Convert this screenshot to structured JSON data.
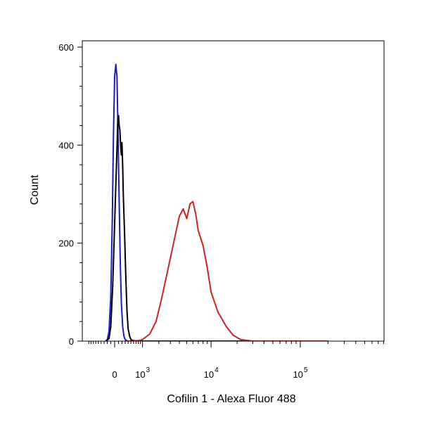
{
  "chart_data": {
    "type": "line",
    "title": "",
    "xlabel": "Cofilin 1 - Alexa Fluor 488",
    "ylabel": "Count",
    "x_scale": "biexponential",
    "ylim": [
      0,
      600
    ],
    "yticks": [
      "0",
      "200",
      "400",
      "600"
    ],
    "xticks": [
      {
        "base": "0",
        "exp": ""
      },
      {
        "base": "10",
        "exp": "3"
      },
      {
        "base": "10",
        "exp": "4"
      },
      {
        "base": "10",
        "exp": "5"
      }
    ],
    "grid": false,
    "legend": "none",
    "series": [
      {
        "color": "#1a1acc",
        "x": [
          -250,
          -200,
          -150,
          -100,
          -60,
          -30,
          0,
          30,
          60,
          90,
          120,
          150,
          180,
          220,
          260,
          300,
          350,
          400,
          500,
          800,
          3000,
          100000,
          200000
        ],
        "values": [
          0,
          3,
          20,
          90,
          250,
          420,
          540,
          565,
          540,
          420,
          280,
          160,
          80,
          30,
          10,
          3,
          1,
          0,
          0,
          0,
          0,
          0,
          0
        ]
      },
      {
        "color": "#000000",
        "x": [
          -250,
          -150,
          -100,
          -50,
          0,
          30,
          60,
          80,
          100,
          120,
          140,
          160,
          180,
          200,
          220,
          240,
          280,
          320,
          360,
          400,
          450,
          500,
          600,
          800,
          1000,
          3000,
          100000,
          200000
        ],
        "values": [
          0,
          5,
          30,
          110,
          240,
          320,
          390,
          450,
          460,
          440,
          430,
          400,
          380,
          405,
          360,
          300,
          220,
          130,
          60,
          25,
          10,
          3,
          1,
          0,
          0,
          0,
          0,
          0
        ]
      },
      {
        "color": "#d42020",
        "x": [
          400,
          800,
          1000,
          1400,
          1800,
          2200,
          2600,
          3000,
          3500,
          4000,
          4500,
          5000,
          5500,
          6000,
          6500,
          7000,
          8000,
          9000,
          10000,
          12000,
          15000,
          18000,
          22000,
          30000,
          200000
        ],
        "values": [
          0,
          1,
          3,
          15,
          40,
          85,
          130,
          170,
          215,
          255,
          270,
          250,
          280,
          285,
          260,
          225,
          195,
          150,
          100,
          60,
          30,
          12,
          3,
          0,
          0
        ]
      }
    ]
  }
}
